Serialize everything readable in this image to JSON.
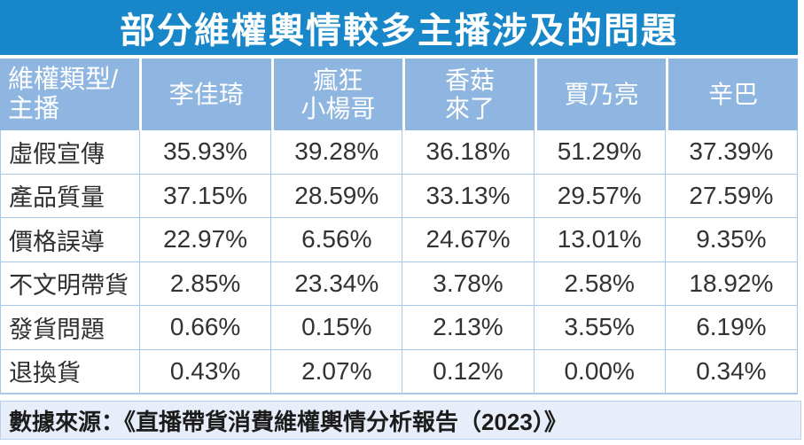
{
  "title": "部分維權輿情較多主播涉及的問題",
  "source_note": "數據來源：《直播帶貨消費維權輿情分析報告（2023）》",
  "colors": {
    "accent_blue": "#1787c9",
    "header_blue": "#8fb6e0",
    "grid_blue": "#a9c8e9",
    "footer_bg": "#e7eef9",
    "header_text": "#ffffff",
    "body_text": "#323232"
  },
  "chart_data": {
    "type": "table",
    "title": "部分維權輿情較多主播涉及的問題",
    "corner_header": "維權類型/\n主播",
    "columns": [
      "李佳琦",
      "瘋狂\n小楊哥",
      "香菇\n來了",
      "賈乃亮",
      "辛巴"
    ],
    "rows": [
      {
        "label": "虛假宣傳",
        "values": [
          "35.93%",
          "39.28%",
          "36.18%",
          "51.29%",
          "37.39%"
        ]
      },
      {
        "label": "產品質量",
        "values": [
          "37.15%",
          "28.59%",
          "33.13%",
          "29.57%",
          "27.59%"
        ]
      },
      {
        "label": "價格誤導",
        "values": [
          "22.97%",
          "6.56%",
          "24.67%",
          "13.01%",
          "9.35%"
        ]
      },
      {
        "label": "不文明帶貨",
        "values": [
          "2.85%",
          "23.34%",
          "3.78%",
          "2.58%",
          "18.92%"
        ]
      },
      {
        "label": "發貨問題",
        "values": [
          "0.66%",
          "0.15%",
          "2.13%",
          "3.55%",
          "6.19%"
        ]
      },
      {
        "label": "退換貨",
        "values": [
          "0.43%",
          "2.07%",
          "0.12%",
          "0.00%",
          "0.34%"
        ]
      }
    ],
    "source": "數據來源：《直播帶貨消費維權輿情分析報告（2023）》"
  }
}
